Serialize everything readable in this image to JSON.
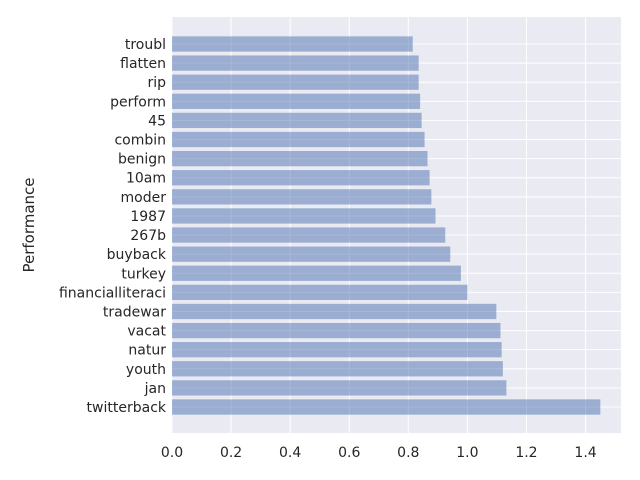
{
  "chart_data": {
    "type": "bar",
    "orientation": "horizontal",
    "title": "",
    "xlabel": "",
    "ylabel": "Performance",
    "xlim": [
      0,
      1.52
    ],
    "xticks": [
      "0.0",
      "0.2",
      "0.4",
      "0.6",
      "0.8",
      "1.0",
      "1.2",
      "1.4"
    ],
    "grid": true,
    "bar_color": "#4c72b0",
    "bar_alpha": 0.5,
    "background_color": "#eaeaf2",
    "categories": [
      "troubl",
      "flatten",
      "rip",
      "perform",
      "45",
      "combin",
      "benign",
      "10am",
      "moder",
      "1987",
      "267b",
      "buyback",
      "turkey",
      "financialliteraci",
      "tradewar",
      "vacat",
      "natur",
      "youth",
      "jan",
      "twitterback"
    ],
    "values": [
      0.815,
      0.835,
      0.835,
      0.84,
      0.845,
      0.855,
      0.865,
      0.872,
      0.878,
      0.892,
      0.925,
      0.942,
      0.978,
      1.0,
      1.098,
      1.112,
      1.116,
      1.12,
      1.132,
      1.45
    ]
  }
}
